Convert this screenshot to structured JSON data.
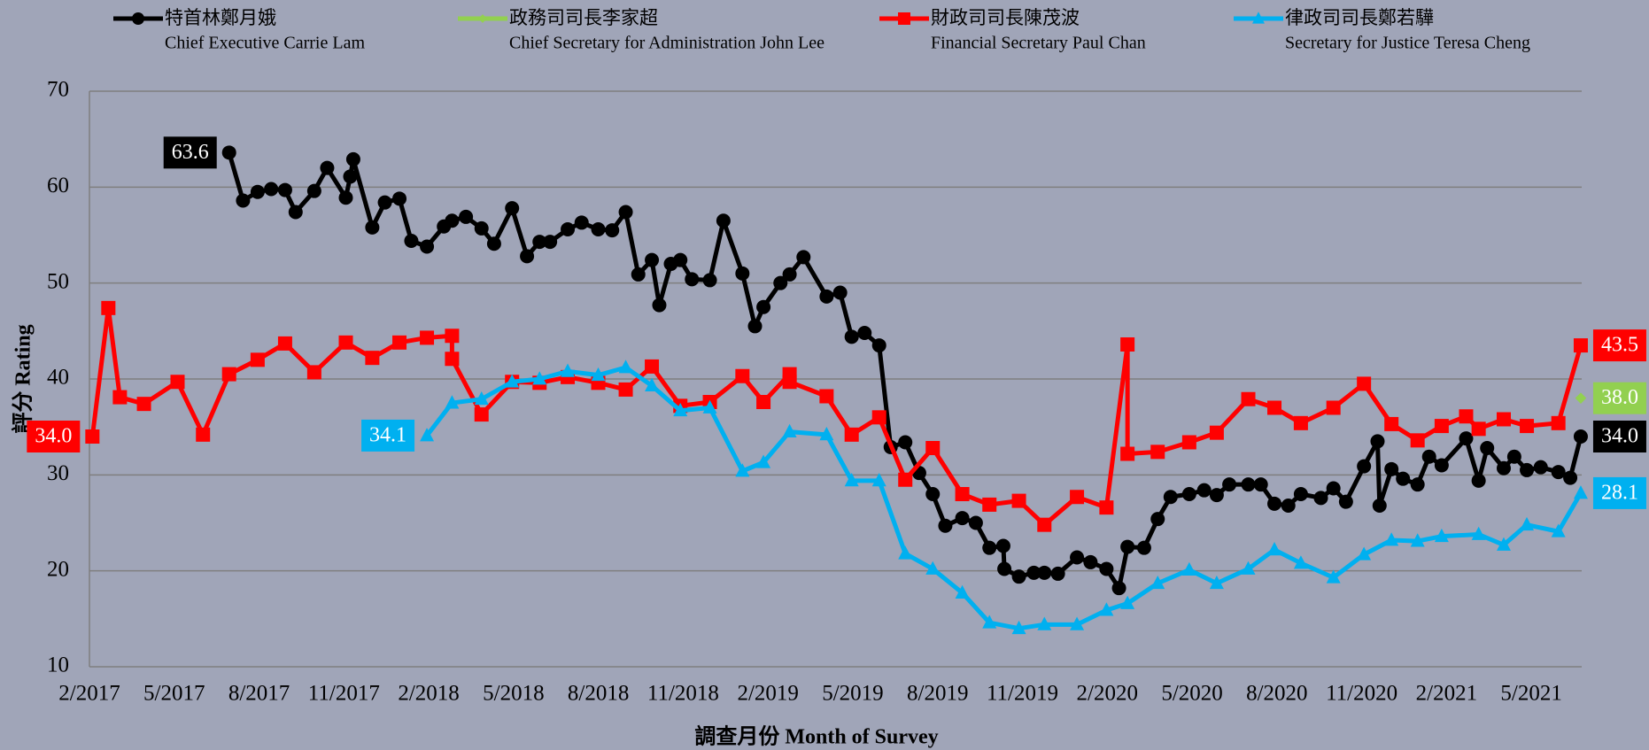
{
  "chart_data": {
    "type": "line",
    "xlabel": "調查月份 Month of Survey",
    "ylabel": "評分 Rating",
    "xlim": [
      2017.0833,
      2021.5
    ],
    "xticks": [
      {
        "value": 2017.0833,
        "label": "2/2017"
      },
      {
        "value": 2017.3333,
        "label": "5/2017"
      },
      {
        "value": 2017.5833,
        "label": "8/2017"
      },
      {
        "value": 2017.8333,
        "label": "11/2017"
      },
      {
        "value": 2018.0833,
        "label": "2/2018"
      },
      {
        "value": 2018.3333,
        "label": "5/2018"
      },
      {
        "value": 2018.5833,
        "label": "8/2018"
      },
      {
        "value": 2018.8333,
        "label": "11/2018"
      },
      {
        "value": 2019.0833,
        "label": "2/2019"
      },
      {
        "value": 2019.3333,
        "label": "5/2019"
      },
      {
        "value": 2019.5833,
        "label": "8/2019"
      },
      {
        "value": 2019.8333,
        "label": "11/2019"
      },
      {
        "value": 2020.0833,
        "label": "2/2020"
      },
      {
        "value": 2020.3333,
        "label": "5/2020"
      },
      {
        "value": 2020.5833,
        "label": "8/2020"
      },
      {
        "value": 2020.8333,
        "label": "11/2020"
      },
      {
        "value": 2021.0833,
        "label": "2/2021"
      },
      {
        "value": 2021.3333,
        "label": "5/2021"
      }
    ],
    "ylim": [
      10,
      70
    ],
    "yticks": [
      10,
      20,
      30,
      40,
      50,
      60,
      70
    ],
    "grid": true,
    "legend": "top",
    "series": [
      {
        "name": "特首林鄭月娥",
        "name_en": "Chief Executive Carrie Lam",
        "color": "#000000",
        "marker": "circle",
        "x": [
          2017.495,
          2017.536,
          2017.579,
          2017.619,
          2017.66,
          2017.691,
          2017.746,
          2017.784,
          2017.839,
          2017.852,
          2017.861,
          2017.917,
          2017.954,
          2017.997,
          2018.032,
          2018.078,
          2018.128,
          2018.152,
          2018.193,
          2018.239,
          2018.276,
          2018.329,
          2018.373,
          2018.41,
          2018.441,
          2018.493,
          2018.534,
          2018.583,
          2018.624,
          2018.664,
          2018.701,
          2018.741,
          2018.763,
          2018.797,
          2018.825,
          2018.859,
          2018.912,
          2018.952,
          2019.008,
          2019.045,
          2019.07,
          2019.12,
          2019.147,
          2019.188,
          2019.256,
          2019.296,
          2019.33,
          2019.368,
          2019.411,
          2019.445,
          2019.488,
          2019.529,
          2019.569,
          2019.606,
          2019.656,
          2019.696,
          2019.736,
          2019.777,
          2019.78,
          2019.823,
          2019.867,
          2019.898,
          2019.938,
          2019.994,
          2020.034,
          2020.081,
          2020.118,
          2020.143,
          2020.192,
          2020.232,
          2020.27,
          2020.325,
          2020.369,
          2020.406,
          2020.443,
          2020.499,
          2020.536,
          2020.576,
          2020.617,
          2020.654,
          2020.713,
          2020.75,
          2020.787,
          2020.84,
          2020.88,
          2020.886,
          2020.921,
          2020.955,
          2020.998,
          2021.032,
          2021.069,
          2021.141,
          2021.178,
          2021.203,
          2021.252,
          2021.283,
          2021.32,
          2021.361,
          2021.413,
          2021.448,
          2021.479
        ],
        "values": [
          63.6,
          58.6,
          59.5,
          59.8,
          59.7,
          57.4,
          59.6,
          62.0,
          58.9,
          61.1,
          62.9,
          55.8,
          58.4,
          58.8,
          54.4,
          53.8,
          55.9,
          56.5,
          56.9,
          55.7,
          54.1,
          57.8,
          52.8,
          54.3,
          54.3,
          55.6,
          56.3,
          55.6,
          55.5,
          57.4,
          50.9,
          52.4,
          47.7,
          52.0,
          52.4,
          50.4,
          50.3,
          56.5,
          51.0,
          45.5,
          47.5,
          50.0,
          50.9,
          52.7,
          48.6,
          49.0,
          44.4,
          44.8,
          43.5,
          32.9,
          33.4,
          30.2,
          28.0,
          24.7,
          25.5,
          25.0,
          22.4,
          22.6,
          20.2,
          19.4,
          19.8,
          19.8,
          19.7,
          21.4,
          20.9,
          20.2,
          18.2,
          22.5,
          22.4,
          25.4,
          27.7,
          28.0,
          28.4,
          27.9,
          29.0,
          29.0,
          29.0,
          27.0,
          26.8,
          28.0,
          27.6,
          28.6,
          27.2,
          30.9,
          33.5,
          26.8,
          30.6,
          29.6,
          29.0,
          31.9,
          31.0,
          33.8,
          29.4,
          32.8,
          30.7,
          31.9,
          30.5,
          30.8,
          30.3,
          29.7,
          34.0
        ],
        "value_labels": [
          "63.6",
          null,
          null,
          null,
          null,
          null,
          null,
          null,
          null,
          null,
          null,
          null,
          null,
          null,
          null,
          null,
          null,
          null,
          null,
          null,
          null,
          null,
          null,
          null,
          null,
          null,
          null,
          null,
          null,
          null,
          null,
          null,
          null,
          null,
          null,
          null,
          null,
          null,
          null,
          null,
          null,
          null,
          null,
          null,
          null,
          null,
          null,
          null,
          null,
          null,
          null,
          null,
          null,
          null,
          null,
          null,
          null,
          null,
          null,
          null,
          null,
          null,
          null,
          null,
          null,
          null,
          null,
          null,
          null,
          null,
          null,
          null,
          null,
          null,
          null,
          null,
          null,
          null,
          null,
          null,
          null,
          null,
          null,
          null,
          null,
          null,
          null,
          null,
          null,
          null,
          null,
          null,
          null,
          null,
          null,
          null,
          null,
          null,
          null,
          null,
          "34.0"
        ]
      },
      {
        "name": "政務司司長李家超",
        "name_en": "Chief Secretary for Administration John Lee",
        "color": "#92d050",
        "marker": "diamond",
        "x": [
          2021.479
        ],
        "values": [
          38.0
        ],
        "value_labels": [
          "38.0"
        ]
      },
      {
        "name": "財政司司長陳茂波",
        "name_en": "Financial Secretary Paul Chan",
        "color": "#ff0000",
        "marker": "square",
        "x": [
          2017.092,
          2017.139,
          2017.173,
          2017.244,
          2017.343,
          2017.418,
          2017.495,
          2017.579,
          2017.66,
          2017.746,
          2017.839,
          2017.917,
          2017.997,
          2018.078,
          2018.152,
          2018.152,
          2018.239,
          2018.329,
          2018.41,
          2018.493,
          2018.583,
          2018.664,
          2018.741,
          2018.825,
          2018.912,
          2019.008,
          2019.07,
          2019.147,
          2019.147,
          2019.256,
          2019.33,
          2019.411,
          2019.488,
          2019.569,
          2019.656,
          2019.736,
          2019.823,
          2019.898,
          2019.994,
          2020.081,
          2020.143,
          2020.143,
          2020.232,
          2020.325,
          2020.406,
          2020.499,
          2020.576,
          2020.654,
          2020.75,
          2020.84,
          2020.921,
          2020.998,
          2021.069,
          2021.141,
          2021.178,
          2021.252,
          2021.32,
          2021.413,
          2021.479
        ],
        "values": [
          34.0,
          47.4,
          38.1,
          37.4,
          39.7,
          34.2,
          40.5,
          42.0,
          43.7,
          40.7,
          43.8,
          42.2,
          43.8,
          44.3,
          44.5,
          42.1,
          36.3,
          39.7,
          39.6,
          40.2,
          39.6,
          38.9,
          41.3,
          37.2,
          37.6,
          40.3,
          37.6,
          40.5,
          39.7,
          38.2,
          34.2,
          36.0,
          29.5,
          32.8,
          28.0,
          26.9,
          27.3,
          24.8,
          27.7,
          26.6,
          43.6,
          32.2,
          32.4,
          33.4,
          34.4,
          37.9,
          37.0,
          35.4,
          37.0,
          39.5,
          35.3,
          33.6,
          35.1,
          36.1,
          34.8,
          35.8,
          35.1,
          35.4,
          43.5
        ],
        "value_labels": [
          "34.0",
          null,
          null,
          null,
          null,
          null,
          null,
          null,
          null,
          null,
          null,
          null,
          null,
          null,
          null,
          null,
          null,
          null,
          null,
          null,
          null,
          null,
          null,
          null,
          null,
          null,
          null,
          null,
          null,
          null,
          null,
          null,
          null,
          null,
          null,
          null,
          null,
          null,
          null,
          null,
          null,
          null,
          null,
          null,
          null,
          null,
          null,
          null,
          null,
          null,
          null,
          null,
          null,
          null,
          null,
          null,
          null,
          null,
          "43.5"
        ]
      },
      {
        "name": "律政司司長鄭若驊",
        "name_en": "Secretary for Justice Teresa Cheng",
        "color": "#00b0f0",
        "marker": "triangle",
        "x": [
          2018.078,
          2018.152,
          2018.239,
          2018.329,
          2018.41,
          2018.493,
          2018.583,
          2018.664,
          2018.741,
          2018.825,
          2018.912,
          2019.008,
          2019.07,
          2019.147,
          2019.256,
          2019.33,
          2019.411,
          2019.488,
          2019.569,
          2019.656,
          2019.736,
          2019.823,
          2019.898,
          2019.994,
          2020.081,
          2020.143,
          2020.232,
          2020.325,
          2020.406,
          2020.499,
          2020.576,
          2020.654,
          2020.75,
          2020.84,
          2020.921,
          2020.998,
          2021.069,
          2021.178,
          2021.252,
          2021.32,
          2021.413,
          2021.479
        ],
        "values": [
          34.1,
          37.5,
          37.9,
          39.7,
          40.0,
          40.8,
          40.4,
          41.2,
          39.3,
          36.7,
          37.0,
          30.4,
          31.3,
          34.5,
          34.2,
          29.4,
          29.4,
          21.8,
          20.2,
          17.7,
          14.6,
          14.0,
          14.4,
          14.4,
          15.9,
          16.6,
          18.7,
          20.1,
          18.7,
          20.2,
          22.2,
          20.8,
          19.3,
          21.7,
          23.2,
          23.1,
          23.6,
          23.8,
          22.7,
          24.8,
          24.1,
          28.1
        ],
        "value_labels": [
          "34.1",
          null,
          null,
          null,
          null,
          null,
          null,
          null,
          null,
          null,
          null,
          null,
          null,
          null,
          null,
          null,
          null,
          null,
          null,
          null,
          null,
          null,
          null,
          null,
          null,
          null,
          null,
          null,
          null,
          null,
          null,
          null,
          null,
          null,
          null,
          null,
          null,
          null,
          null,
          null,
          null,
          "28.1"
        ]
      }
    ]
  }
}
